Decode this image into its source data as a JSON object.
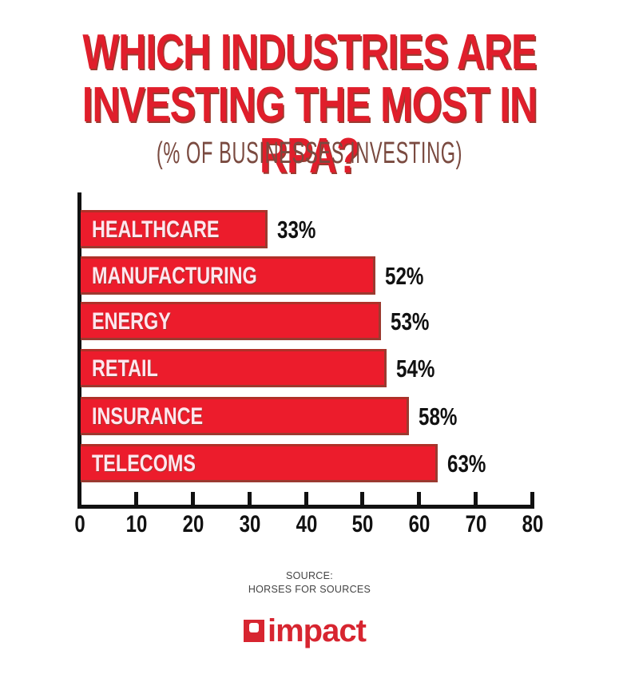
{
  "header": {
    "title_line1": "WHICH INDUSTRIES ARE",
    "title_line2": "INVESTING THE MOST IN RPA?",
    "subtitle": "(% OF BUSINESSES INVESTING)"
  },
  "chart_data": {
    "type": "bar",
    "orientation": "horizontal",
    "title": "Which Industries Are Investing the Most in RPA?",
    "subtitle": "(% of businesses investing)",
    "categories": [
      "HEALTHCARE",
      "MANUFACTURING",
      "ENERGY",
      "RETAIL",
      "INSURANCE",
      "TELECOMS"
    ],
    "values": [
      33,
      52,
      53,
      54,
      58,
      63
    ],
    "value_labels": [
      "33%",
      "52%",
      "53%",
      "54%",
      "58%",
      "63%"
    ],
    "xlabel": "",
    "ylabel": "",
    "xlim": [
      0,
      80
    ],
    "xticks": [
      "0",
      "10",
      "20",
      "30",
      "40",
      "50",
      "60",
      "70",
      "80"
    ],
    "grid": false,
    "legend": null,
    "bar_color": "#ec1c2c"
  },
  "footer": {
    "source_label": "SOURCE:",
    "source_name": "HORSES FOR SOURCES",
    "logo_text": "impact",
    "logo_color": "#d72530"
  }
}
